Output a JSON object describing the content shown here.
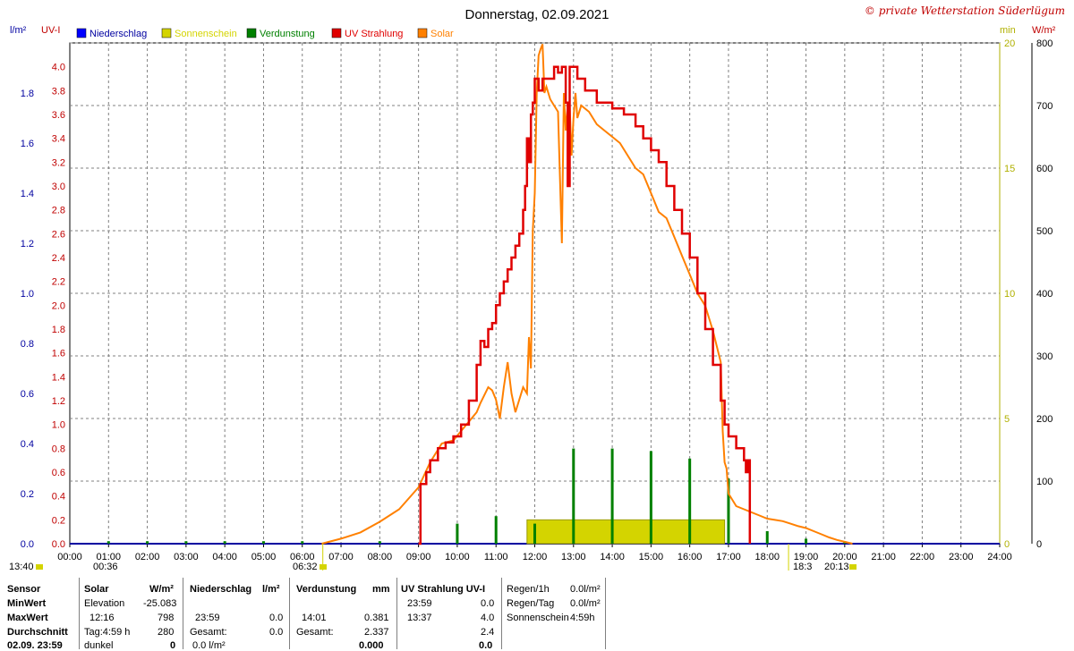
{
  "chart_data": {
    "type": "line",
    "title": "Donnerstag, 02.09.2021",
    "copyright": "© private Wetterstation Süderlügum",
    "left_axes": {
      "rain": {
        "unit": "l/m²",
        "range": [
          0,
          2.0
        ],
        "ticks": [
          "0.0",
          "0.2",
          "0.4",
          "0.6",
          "0.8",
          "1.0",
          "1.2",
          "1.4",
          "1.6",
          "1.8"
        ],
        "color": "#0000a0"
      },
      "uv": {
        "unit": "UV-I",
        "range": [
          0,
          4.2
        ],
        "ticks": [
          "0.0",
          "0.2",
          "0.4",
          "0.6",
          "0.8",
          "1.0",
          "1.2",
          "1.4",
          "1.6",
          "1.8",
          "2.0",
          "2.2",
          "2.4",
          "2.6",
          "2.8",
          "3.0",
          "3.2",
          "3.4",
          "3.6",
          "3.8",
          "4.0"
        ],
        "color": "#c00000"
      }
    },
    "right_axes": {
      "sun": {
        "unit": "min",
        "range": [
          0,
          20
        ],
        "ticks": [
          "0",
          "5",
          "10",
          "15",
          "20"
        ],
        "color": "#b0b000"
      },
      "solar": {
        "unit": "W/m²",
        "range": [
          0,
          800
        ],
        "ticks": [
          "0",
          "100",
          "200",
          "300",
          "400",
          "500",
          "600",
          "700",
          "800"
        ],
        "color": "#000000"
      }
    },
    "x_ticks": [
      "00:00",
      "01:00",
      "02:00",
      "03:00",
      "04:00",
      "05:00",
      "06:00",
      "07:00",
      "08:00",
      "09:00",
      "10:00",
      "11:00",
      "12:00",
      "13:00",
      "14:00",
      "15:00",
      "16:00",
      "17:00",
      "18:00",
      "19:00",
      "20:00",
      "21:00",
      "22:00",
      "23:00",
      "24:00"
    ],
    "legend": [
      {
        "label": "Niederschlag",
        "color": "#0000ff"
      },
      {
        "label": "Sonnenschein",
        "color": "#d4d400"
      },
      {
        "label": "Verdunstung",
        "color": "#008000"
      },
      {
        "label": "UV Strahlung",
        "color": "#e00000"
      },
      {
        "label": "Solar",
        "color": "#ff8000"
      }
    ],
    "markers": {
      "time_left": "13:40",
      "moon": "00:36",
      "sunrise": "06:32",
      "sunset": "18:3",
      "dusk": "20:13"
    },
    "solar_series": {
      "name": "Solar",
      "color": "#ff8000",
      "x": [
        6.5,
        7.0,
        7.5,
        8.0,
        8.5,
        9.0,
        9.3,
        9.6,
        9.9,
        10.1,
        10.3,
        10.5,
        10.6,
        10.8,
        10.9,
        11.0,
        11.1,
        11.2,
        11.3,
        11.4,
        11.5,
        11.6,
        11.7,
        11.8,
        11.85,
        11.9,
        11.95,
        12.0,
        12.05,
        12.1,
        12.15,
        12.2,
        12.25,
        12.3,
        12.4,
        12.5,
        12.6,
        12.7,
        12.75,
        12.8,
        12.85,
        12.9,
        12.95,
        13.0,
        13.05,
        13.1,
        13.2,
        13.4,
        13.6,
        13.8,
        14.0,
        14.2,
        14.4,
        14.6,
        14.8,
        15.0,
        15.2,
        15.4,
        15.6,
        15.8,
        16.0,
        16.2,
        16.4,
        16.6,
        16.8,
        16.85,
        16.9,
        16.95,
        17.0,
        17.1,
        17.2,
        17.4,
        17.6,
        17.8,
        18.0,
        18.2,
        18.4,
        18.6,
        18.8,
        19.0,
        19.2,
        19.4,
        19.6,
        19.8,
        20.0,
        20.2
      ],
      "y": [
        0,
        8,
        18,
        35,
        55,
        90,
        130,
        160,
        165,
        180,
        195,
        210,
        225,
        250,
        245,
        230,
        200,
        250,
        290,
        240,
        210,
        230,
        250,
        240,
        330,
        280,
        500,
        560,
        720,
        780,
        790,
        798,
        720,
        730,
        710,
        700,
        690,
        480,
        720,
        660,
        700,
        700,
        620,
        680,
        720,
        680,
        700,
        690,
        670,
        660,
        650,
        640,
        620,
        600,
        590,
        560,
        530,
        520,
        490,
        460,
        430,
        400,
        380,
        340,
        290,
        180,
        130,
        120,
        80,
        70,
        60,
        55,
        50,
        45,
        40,
        38,
        36,
        32,
        28,
        25,
        20,
        15,
        10,
        6,
        3,
        0
      ]
    },
    "uv_series": {
      "name": "UV Strahlung",
      "color": "#e00000",
      "x": [
        9.0,
        9.05,
        9.2,
        9.3,
        9.5,
        9.7,
        9.9,
        10.1,
        10.3,
        10.5,
        10.6,
        10.7,
        10.8,
        10.9,
        11.0,
        11.1,
        11.2,
        11.3,
        11.4,
        11.5,
        11.6,
        11.7,
        11.75,
        11.8,
        11.85,
        11.9,
        11.95,
        12.0,
        12.1,
        12.2,
        12.3,
        12.5,
        12.6,
        12.7,
        12.8,
        12.85,
        12.9,
        13.0,
        13.1,
        13.3,
        13.6,
        14.0,
        14.3,
        14.6,
        14.8,
        15.0,
        15.2,
        15.4,
        15.6,
        15.8,
        16.0,
        16.2,
        16.4,
        16.6,
        16.8,
        16.9,
        17.0,
        17.2,
        17.4,
        17.45,
        17.5,
        17.55
      ],
      "y": [
        0,
        0.5,
        0.6,
        0.7,
        0.8,
        0.85,
        0.9,
        1.0,
        1.2,
        1.5,
        1.7,
        1.65,
        1.8,
        1.85,
        2.0,
        2.1,
        2.2,
        2.3,
        2.4,
        2.5,
        2.6,
        2.8,
        3.0,
        3.4,
        3.2,
        3.6,
        3.7,
        3.9,
        3.8,
        3.9,
        3.9,
        4.0,
        3.95,
        4.0,
        3.7,
        3.0,
        4.0,
        4.0,
        3.9,
        3.8,
        3.7,
        3.65,
        3.6,
        3.5,
        3.4,
        3.3,
        3.2,
        3.0,
        2.8,
        2.6,
        2.4,
        2.1,
        1.8,
        1.5,
        1.2,
        1.0,
        0.9,
        0.8,
        0.7,
        0.6,
        0.7,
        0
      ]
    },
    "sunshine_series": {
      "name": "Sonnenschein",
      "color": "#d4d400",
      "x_start": 11.8,
      "x_end": 16.9,
      "y": 2.0
    },
    "evaporation_series": {
      "name": "Verdunstung",
      "color": "#008000",
      "x": [
        1,
        2,
        3,
        4,
        5,
        6,
        8,
        10,
        11,
        12,
        13,
        14,
        15,
        16,
        17,
        18,
        19,
        20
      ],
      "y": [
        0.01,
        0.01,
        0.01,
        0.01,
        0.01,
        0.01,
        0.01,
        0.08,
        0.11,
        0.08,
        0.38,
        0.38,
        0.37,
        0.34,
        0.26,
        0.05,
        0.02,
        0.01
      ]
    }
  },
  "stats": {
    "headers": [
      "Sensor",
      "Solar",
      "W/m²",
      "Niederschlag",
      "l/m²",
      "Verdunstung",
      "mm",
      "UV Strahlung UV-I"
    ],
    "rows": {
      "minwert": {
        "label": "MinWert",
        "solar_sub": "Elevation",
        "solar_val": "-25.083",
        "uv_time": "23:59",
        "uv_val": "0.0"
      },
      "maxwert": {
        "label": "MaxWert",
        "solar_time": "12:16",
        "solar_val": "798",
        "rain_time": "23:59",
        "rain_val": "0.0",
        "evap_time": "14:01",
        "evap_val": "0.381",
        "uv_time": "13:37",
        "uv_val": "4.0"
      },
      "durchschnitt": {
        "label": "Durchschnitt",
        "solar_sub": "Tag:4:59 h",
        "solar_val": "280",
        "rain_sub": "Gesamt:",
        "rain_val": "0.0",
        "evap_sub": "Gesamt:",
        "evap_val": "2.337",
        "uv_val": "2.4"
      },
      "last": {
        "label": "02.09. 23:59",
        "solar_sub": "dunkel",
        "solar_val": "0",
        "rain_sub": "0.0 l/m²",
        "evap_val": "0.000",
        "uv_val": "0.0"
      }
    },
    "summary": {
      "regen_h_label": "Regen/1h",
      "regen_h_val": "0.0l/m²",
      "regen_tag_label": "Regen/Tag",
      "regen_tag_val": "0.0l/m²",
      "sonne_label": "Sonnenschein",
      "sonne_val": "4:59h"
    }
  }
}
